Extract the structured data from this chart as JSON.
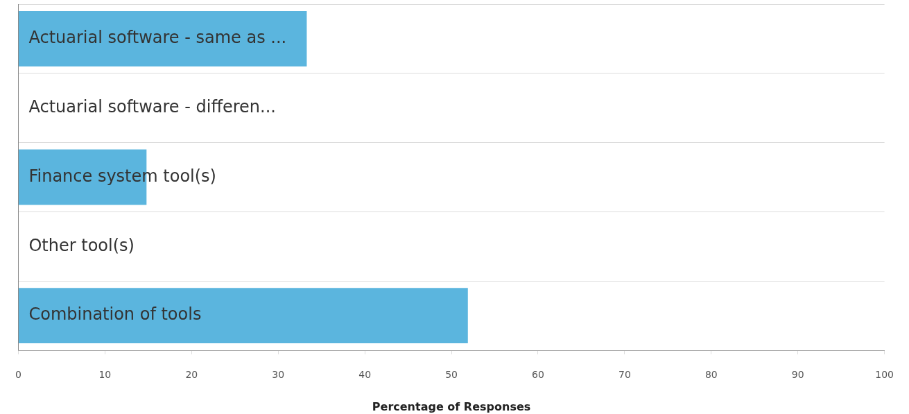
{
  "chart_data": {
    "type": "bar",
    "orientation": "horizontal",
    "categories": [
      "Actuarial software - same as ...",
      "Actuarial software - differen...",
      "Finance system tool(s)",
      "Other tool(s)",
      "Combination of tools"
    ],
    "values": [
      33.3,
      0,
      14.8,
      0,
      51.9
    ],
    "color": "#5bb5de",
    "xlabel": "Percentage of Responses",
    "xlim": [
      0,
      100
    ],
    "xticks": [
      0,
      10,
      20,
      30,
      40,
      50,
      60,
      70,
      80,
      90,
      100
    ],
    "grid": "y"
  }
}
